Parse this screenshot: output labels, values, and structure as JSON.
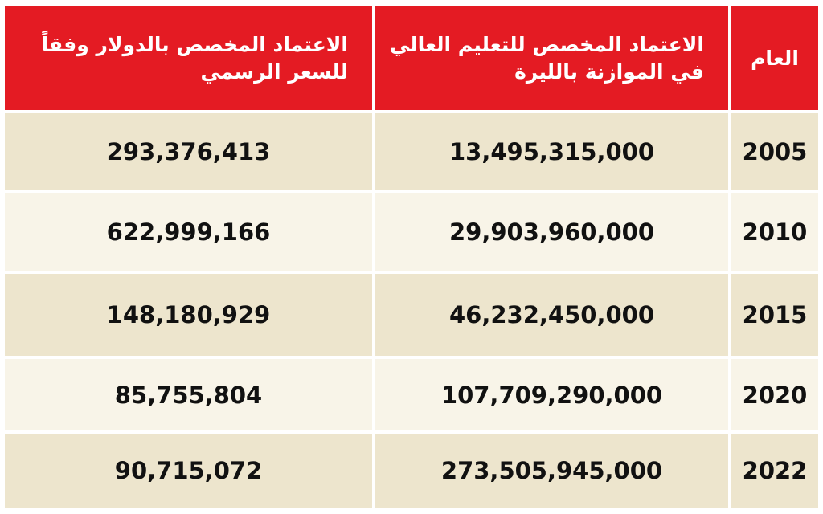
{
  "table": {
    "header": [
      {
        "lines": [
          "العام"
        ]
      },
      {
        "lines": [
          "الاعتماد المخصص للتعليم العالي",
          "في الموازنة بالليرة"
        ]
      },
      {
        "lines": [
          "الاعتماد المخصص بالدولار وفقاً",
          "للسعر الرسمي"
        ]
      }
    ],
    "rows": [
      [
        "2005",
        "13,495,315,000",
        "293,376,413"
      ],
      [
        "2010",
        "29,903,960,000",
        "622,999,166"
      ],
      [
        "2015",
        "46,232,450,000",
        "148,180,929"
      ],
      [
        "2020",
        "107,709,290,000",
        "85,755,804"
      ],
      [
        "2022",
        "273,505,945,000",
        "90,715,072"
      ]
    ]
  }
}
